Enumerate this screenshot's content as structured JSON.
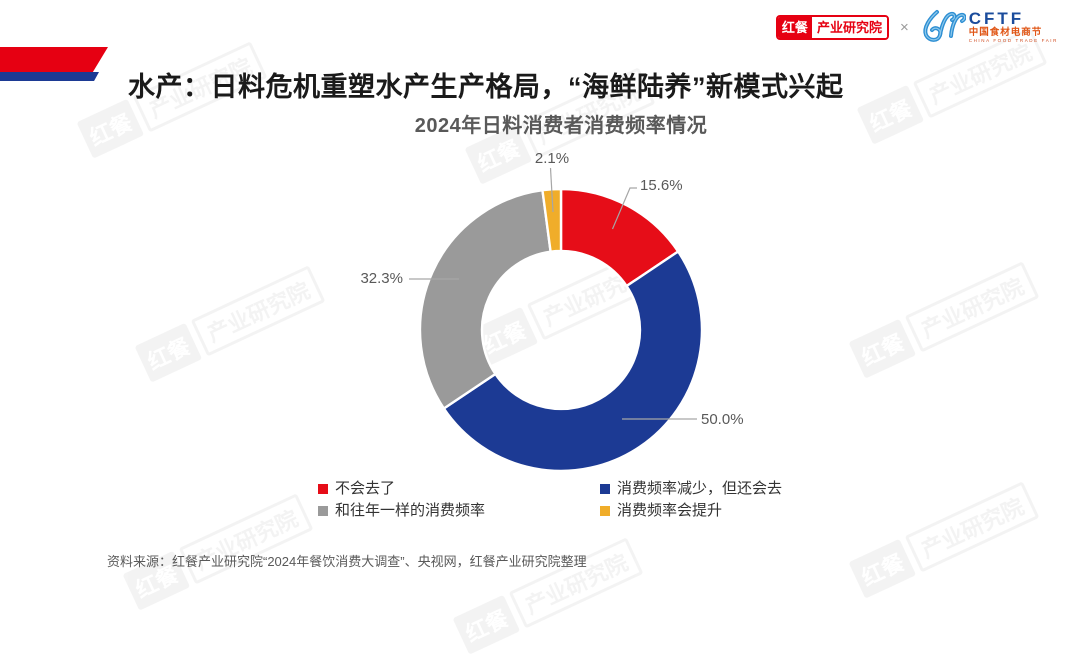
{
  "header": {
    "title": "水产：日料危机重塑水产生产格局，“海鲜陆养”新模式兴起",
    "brand_badge": {
      "left": "红餐",
      "right": "产业研究院"
    },
    "separator": "×",
    "cftf_logo": {
      "acronym": "CFTF",
      "cn_name": "中国食材电商节",
      "en_name": "CHINA FOOD TRADE FAIR"
    }
  },
  "chart_data": {
    "type": "pie",
    "donut": true,
    "title": "2024年日料消费者消费频率情况",
    "start_angle_deg": 0,
    "direction": "clockwise",
    "legend_position": "bottom",
    "slices": [
      {
        "label": "不会去了",
        "value": 15.6,
        "data_label": "15.6%",
        "color": "#e60d18"
      },
      {
        "label": "消费频率减少，但还会去",
        "value": 50.0,
        "data_label": "50.0%",
        "color": "#1c3a94"
      },
      {
        "label": "和往年一样的消费频率",
        "value": 32.3,
        "data_label": "32.3%",
        "color": "#9a9a9a"
      },
      {
        "label": "消费频率会提升",
        "value": 2.1,
        "data_label": "2.1%",
        "color": "#f0ad2a"
      }
    ]
  },
  "source_note": "资料来源：红餐产业研究院“2024年餐饮消费大调查”、央视网，红餐产业研究院整理",
  "watermark": {
    "badge": "红餐",
    "label": "产业研究院"
  },
  "colors": {
    "accent_red": "#e60012",
    "accent_blue": "#1c3a94"
  }
}
